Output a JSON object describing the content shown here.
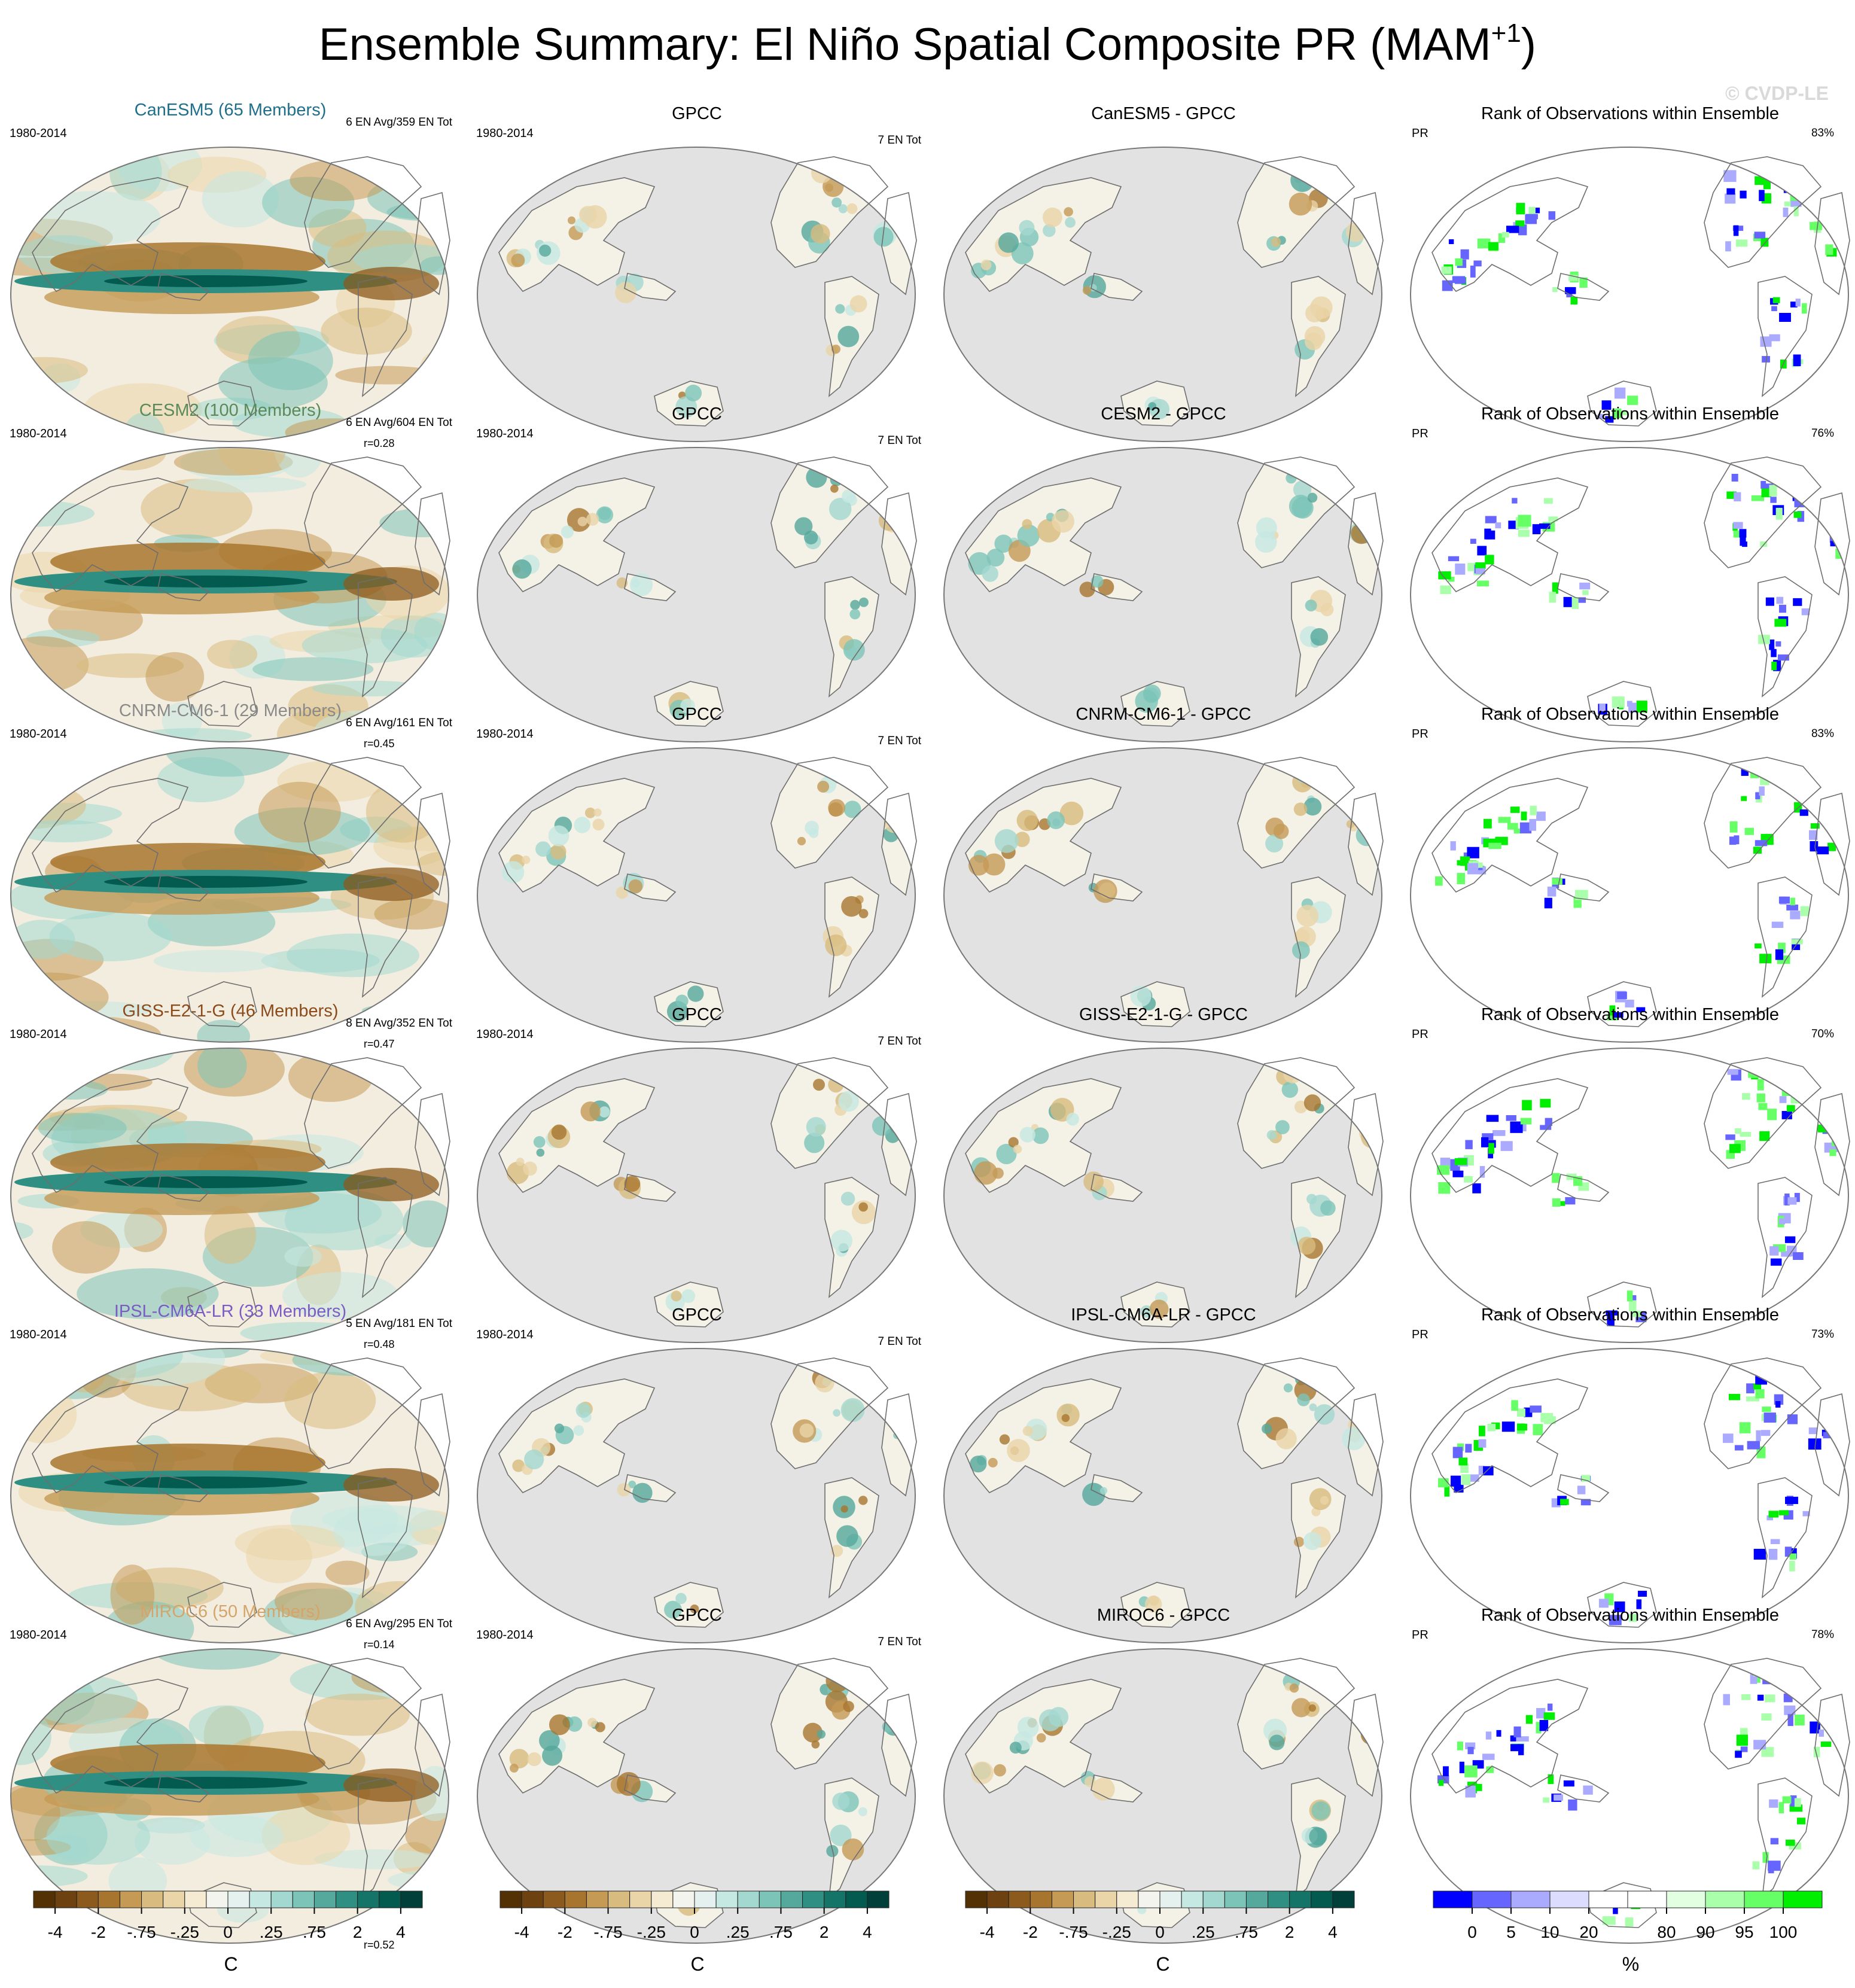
{
  "title_main": "Ensemble Summary: El Niño Spatial Composite PR (MAM",
  "title_sup": "+1",
  "title_close": ")",
  "watermark": "© CVDP-LE",
  "rows": [
    {
      "model": {
        "title": "CanESM5 (65 Members)",
        "title_color": "#1f6f8b",
        "period": "1980-2014",
        "events": "6 EN Avg/359 EN Tot",
        "corr": "r=0.28"
      },
      "obs": {
        "title": "GPCC",
        "period": "1980-2014",
        "events": "7 EN Tot"
      },
      "diff": {
        "title": "CanESM5 - GPCC"
      },
      "rank": {
        "title": "Rank of Observations within Ensemble",
        "var": "PR",
        "pct": "83%"
      }
    },
    {
      "model": {
        "title": "CESM2 (100 Members)",
        "title_color": "#5a8a5a",
        "period": "1980-2014",
        "events": "6 EN Avg/604 EN Tot",
        "corr": "r=0.45"
      },
      "obs": {
        "title": "GPCC",
        "period": "1980-2014",
        "events": "7 EN Tot"
      },
      "diff": {
        "title": "CESM2 - GPCC"
      },
      "rank": {
        "title": "Rank of Observations within Ensemble",
        "var": "PR",
        "pct": "76%"
      }
    },
    {
      "model": {
        "title": "CNRM-CM6-1 (29 Members)",
        "title_color": "#8a8a8a",
        "period": "1980-2014",
        "events": "6 EN Avg/161 EN Tot",
        "corr": "r=0.47"
      },
      "obs": {
        "title": "GPCC",
        "period": "1980-2014",
        "events": "7 EN Tot"
      },
      "diff": {
        "title": "CNRM-CM6-1 - GPCC"
      },
      "rank": {
        "title": "Rank of Observations within Ensemble",
        "var": "PR",
        "pct": "83%"
      }
    },
    {
      "model": {
        "title": "GISS-E2-1-G (46 Members)",
        "title_color": "#8b4a1a",
        "period": "1980-2014",
        "events": "8 EN Avg/352 EN Tot",
        "corr": "r=0.48"
      },
      "obs": {
        "title": "GPCC",
        "period": "1980-2014",
        "events": "7 EN Tot"
      },
      "diff": {
        "title": "GISS-E2-1-G - GPCC"
      },
      "rank": {
        "title": "Rank of Observations within Ensemble",
        "var": "PR",
        "pct": "70%"
      }
    },
    {
      "model": {
        "title": "IPSL-CM6A-LR (33 Members)",
        "title_color": "#7a5cc4",
        "period": "1980-2014",
        "events": "5 EN Avg/181 EN Tot",
        "corr": "r=0.14"
      },
      "obs": {
        "title": "GPCC",
        "period": "1980-2014",
        "events": "7 EN Tot"
      },
      "diff": {
        "title": "IPSL-CM6A-LR - GPCC"
      },
      "rank": {
        "title": "Rank of Observations within Ensemble",
        "var": "PR",
        "pct": "73%"
      }
    },
    {
      "model": {
        "title": "MIROC6 (50 Members)",
        "title_color": "#d4a56a",
        "period": "1980-2014",
        "events": "6 EN Avg/295 EN Tot",
        "corr": "r=0.52"
      },
      "obs": {
        "title": "GPCC",
        "period": "1980-2014",
        "events": "7 EN Tot"
      },
      "diff": {
        "title": "MIROC6 - GPCC"
      },
      "rank": {
        "title": "Rank of Observations within Ensemble",
        "var": "PR",
        "pct": "78%"
      }
    }
  ],
  "colorbars": {
    "anomaly": {
      "colors": [
        "#543005",
        "#6e4110",
        "#8c5a1c",
        "#a8752e",
        "#c49a55",
        "#d8bb7e",
        "#ead5a8",
        "#f5ead2",
        "#f4f4ee",
        "#e4f1ef",
        "#c6e8e2",
        "#a2d8cf",
        "#7cc4b8",
        "#55a89c",
        "#2e8f82",
        "#137467",
        "#035a4f",
        "#01403a"
      ],
      "tick_labels": [
        "-4",
        "-2",
        "-.75",
        "-.25",
        "0",
        ".25",
        ".75",
        "2",
        "4"
      ],
      "unit": "C"
    },
    "rank": {
      "colors": [
        "#0000ff",
        "#6666ff",
        "#aaaaff",
        "#dcdcff",
        "#ffffff",
        "#ffffff",
        "#e2ffe2",
        "#aaffaa",
        "#66ff66",
        "#00ee00"
      ],
      "tick_labels": [
        "0",
        "5",
        "10",
        "20",
        "80",
        "90",
        "95",
        "100"
      ],
      "unit": "%"
    }
  }
}
